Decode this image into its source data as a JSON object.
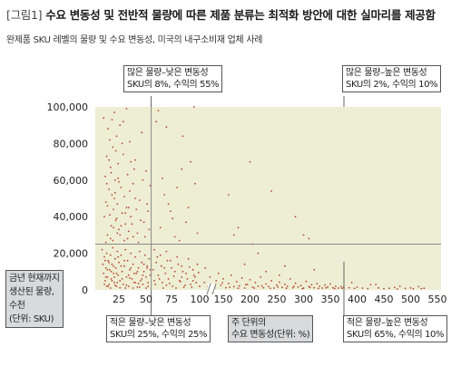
{
  "title_prefix": "[그림1]",
  "title": "수요 변동성 및 전반적 물량에 따른 제품 분류는 최적화 방안에 대한 실마리를 제공함",
  "subtitle": "완제품 SKU 레벨의 물량 및 수요 변동성, 미국의 내구소비재 업체 사례",
  "ylabel": [
    "금년 현재까지",
    "생산된 물량,",
    "수천",
    "(단위: SKU)"
  ],
  "xlabel": [
    "주 단위의",
    "수요 변동성(단위: %)"
  ],
  "quadrants": {
    "top_left": [
      "많은 물량–낮은 변동성",
      "SKU의 8%, 수익의 55%"
    ],
    "top_right": [
      "많은 물량–높은 변동성",
      "SKU의 2%, 수익의 10%"
    ],
    "bottom_left": [
      "적은 물량–낮은 변동성",
      "SKU의 25%, 수익의 25%"
    ],
    "bottom_right": [
      "적은 물량–높은 변동성",
      "SKU의 65%, 수익의 10%"
    ]
  },
  "colors": {
    "plot_bg": "#eeeed4",
    "points": "#b5492f",
    "divider": "#8a8a8a",
    "box_gray": "#d8dadc"
  },
  "chart_data": {
    "type": "scatter",
    "x_axis": {
      "ticks": [
        25,
        50,
        75,
        100,
        150,
        200,
        250,
        300,
        350,
        400,
        450,
        500,
        550
      ],
      "break_between": [
        100,
        150
      ]
    },
    "y_axis": {
      "ticks": [
        0,
        20000,
        40000,
        60000,
        80000,
        100000
      ],
      "tick_labels": [
        "0",
        "20,000",
        "40,000",
        "60,000",
        "80,000",
        "100,000"
      ],
      "range": [
        0,
        100000
      ]
    },
    "dividers": {
      "x": 55,
      "y": 25000
    },
    "grid": false,
    "points": [
      [
        5,
        94000
      ],
      [
        7,
        62000
      ],
      [
        8,
        48000
      ],
      [
        9,
        73000
      ],
      [
        10,
        30000
      ],
      [
        11,
        88000
      ],
      [
        12,
        55000
      ],
      [
        13,
        41000
      ],
      [
        14,
        67000
      ],
      [
        15,
        35000
      ],
      [
        16,
        52000
      ],
      [
        17,
        78000
      ],
      [
        18,
        44000
      ],
      [
        19,
        97000
      ],
      [
        20,
        60000
      ],
      [
        21,
        38000
      ],
      [
        22,
        84000
      ],
      [
        23,
        47000
      ],
      [
        24,
        69000
      ],
      [
        25,
        33000
      ],
      [
        26,
        90000
      ],
      [
        27,
        56000
      ],
      [
        28,
        42000
      ],
      [
        29,
        74000
      ],
      [
        30,
        51000
      ],
      [
        31,
        36000
      ],
      [
        32,
        99000
      ],
      [
        33,
        63000
      ],
      [
        34,
        45000
      ],
      [
        35,
        81000
      ],
      [
        36,
        40000
      ],
      [
        38,
        58000
      ],
      [
        40,
        71000
      ],
      [
        42,
        31000
      ],
      [
        44,
        49000
      ],
      [
        46,
        86000
      ],
      [
        48,
        37000
      ],
      [
        50,
        65000
      ],
      [
        52,
        43000
      ],
      [
        54,
        57000
      ],
      [
        10,
        46000
      ],
      [
        12,
        71000
      ],
      [
        14,
        28000
      ],
      [
        16,
        93000
      ],
      [
        18,
        34000
      ],
      [
        20,
        53000
      ],
      [
        22,
        39000
      ],
      [
        24,
        61000
      ],
      [
        26,
        30000
      ],
      [
        28,
        80000
      ],
      [
        30,
        27000
      ],
      [
        32,
        45000
      ],
      [
        34,
        32000
      ],
      [
        36,
        70000
      ],
      [
        38,
        29000
      ],
      [
        40,
        50000
      ],
      [
        8,
        26000
      ],
      [
        6,
        40000
      ],
      [
        9,
        58000
      ],
      [
        13,
        82000
      ],
      [
        15,
        64000
      ],
      [
        17,
        27000
      ],
      [
        19,
        50000
      ],
      [
        21,
        76000
      ],
      [
        23,
        31000
      ],
      [
        25,
        59000
      ],
      [
        27,
        35000
      ],
      [
        29,
        92000
      ],
      [
        31,
        42000
      ],
      [
        33,
        28000
      ],
      [
        35,
        54000
      ],
      [
        37,
        36000
      ],
      [
        39,
        66000
      ],
      [
        41,
        44000
      ],
      [
        43,
        26000
      ],
      [
        45,
        38000
      ],
      [
        47,
        60000
      ],
      [
        49,
        29000
      ],
      [
        51,
        47000
      ],
      [
        53,
        33000
      ],
      [
        3,
        22000
      ],
      [
        4,
        14000
      ],
      [
        5,
        9000
      ],
      [
        6,
        18000
      ],
      [
        7,
        5000
      ],
      [
        8,
        12000
      ],
      [
        9,
        20000
      ],
      [
        10,
        7000
      ],
      [
        11,
        16000
      ],
      [
        12,
        3000
      ],
      [
        13,
        11000
      ],
      [
        14,
        19000
      ],
      [
        15,
        6000
      ],
      [
        16,
        14000
      ],
      [
        17,
        23000
      ],
      [
        18,
        9000
      ],
      [
        19,
        4000
      ],
      [
        20,
        17000
      ],
      [
        21,
        12000
      ],
      [
        22,
        2000
      ],
      [
        23,
        21000
      ],
      [
        24,
        8000
      ],
      [
        25,
        15000
      ],
      [
        26,
        5000
      ],
      [
        27,
        19000
      ],
      [
        28,
        10000
      ],
      [
        29,
        3000
      ],
      [
        30,
        13000
      ],
      [
        31,
        22000
      ],
      [
        32,
        7000
      ],
      [
        33,
        16000
      ],
      [
        34,
        2000
      ],
      [
        35,
        11000
      ],
      [
        36,
        20000
      ],
      [
        37,
        6000
      ],
      [
        38,
        14000
      ],
      [
        39,
        4000
      ],
      [
        40,
        18000
      ],
      [
        41,
        9000
      ],
      [
        42,
        1500
      ],
      [
        43,
        12000
      ],
      [
        44,
        21000
      ],
      [
        45,
        5000
      ],
      [
        46,
        15000
      ],
      [
        47,
        3000
      ],
      [
        48,
        10000
      ],
      [
        49,
        19000
      ],
      [
        50,
        7000
      ],
      [
        51,
        13000
      ],
      [
        52,
        2000
      ],
      [
        53,
        17000
      ],
      [
        54,
        8000
      ],
      [
        6,
        3000
      ],
      [
        8,
        7000
      ],
      [
        10,
        11000
      ],
      [
        12,
        15000
      ],
      [
        14,
        1000
      ],
      [
        16,
        5000
      ],
      [
        18,
        13000
      ],
      [
        20,
        2500
      ],
      [
        22,
        9000
      ],
      [
        24,
        18000
      ],
      [
        26,
        1200
      ],
      [
        28,
        6000
      ],
      [
        30,
        16000
      ],
      [
        32,
        2500
      ],
      [
        34,
        8000
      ],
      [
        36,
        12000
      ],
      [
        38,
        1000
      ],
      [
        40,
        4000
      ],
      [
        42,
        10000
      ],
      [
        44,
        1500
      ],
      [
        46,
        6000
      ],
      [
        48,
        14000
      ],
      [
        50,
        1000
      ],
      [
        52,
        4000
      ],
      [
        54,
        11000
      ],
      [
        11,
        2000
      ],
      [
        15,
        10000
      ],
      [
        19,
        7000
      ],
      [
        23,
        4000
      ],
      [
        27,
        13000
      ],
      [
        31,
        1000
      ],
      [
        35,
        6500
      ],
      [
        39,
        9000
      ],
      [
        43,
        3500
      ],
      [
        47,
        8000
      ],
      [
        51,
        12000
      ],
      [
        7,
        16000
      ],
      [
        9,
        2000
      ],
      [
        60,
        92000
      ],
      [
        62,
        98000
      ],
      [
        66,
        61000
      ],
      [
        70,
        89000
      ],
      [
        74,
        43000
      ],
      [
        80,
        56000
      ],
      [
        85,
        84000
      ],
      [
        88,
        37000
      ],
      [
        95,
        100000
      ],
      [
        92,
        70000
      ],
      [
        64,
        34000
      ],
      [
        72,
        47000
      ],
      [
        78,
        29000
      ],
      [
        84,
        66000
      ],
      [
        98,
        31000
      ],
      [
        68,
        52000
      ],
      [
        76,
        39000
      ],
      [
        90,
        45000
      ],
      [
        82,
        27000
      ],
      [
        96,
        58000
      ],
      [
        58,
        22000
      ],
      [
        60,
        15000
      ],
      [
        62,
        8000
      ],
      [
        64,
        19000
      ],
      [
        66,
        4000
      ],
      [
        68,
        12000
      ],
      [
        70,
        21000
      ],
      [
        72,
        6000
      ],
      [
        74,
        16000
      ],
      [
        76,
        2000
      ],
      [
        78,
        10000
      ],
      [
        80,
        18000
      ],
      [
        82,
        5000
      ],
      [
        84,
        13000
      ],
      [
        86,
        1500
      ],
      [
        88,
        9000
      ],
      [
        90,
        17000
      ],
      [
        92,
        3000
      ],
      [
        94,
        11000
      ],
      [
        96,
        7000
      ],
      [
        98,
        14000
      ],
      [
        100,
        2000
      ],
      [
        57,
        11000
      ],
      [
        59,
        3000
      ],
      [
        61,
        18000
      ],
      [
        63,
        6000
      ],
      [
        65,
        13000
      ],
      [
        67,
        1000
      ],
      [
        69,
        9000
      ],
      [
        71,
        16000
      ],
      [
        73,
        3500
      ],
      [
        75,
        12000
      ],
      [
        77,
        7500
      ],
      [
        79,
        1000
      ],
      [
        81,
        14000
      ],
      [
        83,
        4500
      ],
      [
        85,
        10000
      ],
      [
        87,
        2500
      ],
      [
        89,
        6000
      ],
      [
        91,
        12500
      ],
      [
        93,
        1500
      ],
      [
        95,
        8000
      ],
      [
        97,
        4000
      ],
      [
        99,
        9500
      ],
      [
        58,
        5000
      ],
      [
        70,
        2500
      ],
      [
        84,
        7000
      ],
      [
        94,
        5000
      ],
      [
        110,
        4000
      ],
      [
        112,
        12000
      ],
      [
        118,
        2000
      ],
      [
        122,
        7000
      ],
      [
        128,
        1500
      ],
      [
        135,
        5000
      ],
      [
        140,
        9000
      ],
      [
        145,
        2500
      ],
      [
        150,
        6000
      ],
      [
        155,
        1200
      ],
      [
        160,
        3500
      ],
      [
        165,
        8000
      ],
      [
        170,
        1800
      ],
      [
        175,
        4500
      ],
      [
        180,
        2200
      ],
      [
        185,
        6500
      ],
      [
        190,
        1000
      ],
      [
        195,
        3000
      ],
      [
        200,
        5500
      ],
      [
        205,
        1500
      ],
      [
        210,
        4000
      ],
      [
        215,
        2000
      ],
      [
        220,
        7000
      ],
      [
        225,
        1200
      ],
      [
        230,
        3200
      ],
      [
        235,
        1800
      ],
      [
        240,
        5000
      ],
      [
        245,
        1000
      ],
      [
        250,
        2600
      ],
      [
        255,
        4200
      ],
      [
        260,
        1400
      ],
      [
        265,
        3000
      ],
      [
        270,
        2000
      ],
      [
        275,
        6000
      ],
      [
        280,
        1200
      ],
      [
        285,
        3600
      ],
      [
        290,
        1600
      ],
      [
        295,
        2400
      ],
      [
        300,
        1000
      ],
      [
        305,
        4600
      ],
      [
        310,
        1800
      ],
      [
        315,
        2800
      ],
      [
        320,
        1200
      ],
      [
        325,
        3400
      ],
      [
        330,
        2000
      ],
      [
        335,
        1000
      ],
      [
        340,
        2600
      ],
      [
        345,
        1600
      ],
      [
        350,
        3200
      ],
      [
        355,
        1200
      ],
      [
        360,
        2000
      ],
      [
        365,
        1000
      ],
      [
        370,
        1800
      ],
      [
        375,
        1400
      ],
      [
        120,
        3000
      ],
      [
        132,
        1000
      ],
      [
        148,
        3800
      ],
      [
        162,
        1500
      ],
      [
        178,
        900
      ],
      [
        192,
        2800
      ],
      [
        208,
        1000
      ],
      [
        222,
        2200
      ],
      [
        238,
        800
      ],
      [
        252,
        1600
      ],
      [
        268,
        900
      ],
      [
        282,
        2000
      ],
      [
        298,
        700
      ],
      [
        312,
        1300
      ],
      [
        328,
        800
      ],
      [
        342,
        1100
      ],
      [
        358,
        700
      ],
      [
        372,
        900
      ],
      [
        160,
        52000
      ],
      [
        170,
        30000
      ],
      [
        178,
        34000
      ],
      [
        200,
        70000
      ],
      [
        215,
        20000
      ],
      [
        240,
        54000
      ],
      [
        285,
        40000
      ],
      [
        300,
        30000
      ],
      [
        310,
        28000
      ],
      [
        230,
        10000
      ],
      [
        190,
        14000
      ],
      [
        255,
        8000
      ],
      [
        320,
        11000
      ],
      [
        205,
        25000
      ],
      [
        265,
        13000
      ],
      [
        385,
        1200
      ],
      [
        395,
        800
      ],
      [
        400,
        1500
      ],
      [
        410,
        1000
      ],
      [
        420,
        700
      ],
      [
        425,
        2800
      ],
      [
        440,
        1100
      ],
      [
        450,
        600
      ],
      [
        460,
        900
      ],
      [
        470,
        1300
      ],
      [
        475,
        500
      ],
      [
        480,
        2000
      ],
      [
        490,
        800
      ],
      [
        500,
        1100
      ],
      [
        505,
        600
      ],
      [
        515,
        1800
      ],
      [
        520,
        700
      ],
      [
        525,
        900
      ],
      [
        390,
        4000
      ],
      [
        435,
        3000
      ]
    ]
  }
}
